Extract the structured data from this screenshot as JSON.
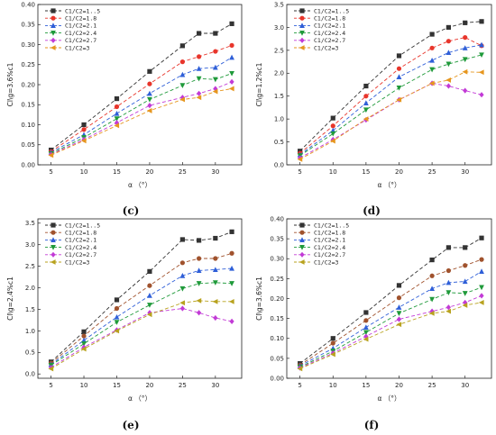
{
  "chart_data": [
    {
      "type": "line",
      "panel_label": "(c)",
      "ylabel": "Cl\\g=3.6%c1",
      "xlabel": "α （°）",
      "x": [
        5,
        10,
        15,
        20,
        25,
        27.5,
        30,
        32.5
      ],
      "xlim": [
        3,
        34
      ],
      "ylim": [
        0,
        0.4
      ],
      "yticks": [
        "0.00",
        "0.05",
        "0.10",
        "0.15",
        "0.20",
        "0.25",
        "0.30",
        "0.35",
        "0.40"
      ],
      "xticks": [
        "5",
        "10",
        "15",
        "20",
        "25",
        "30"
      ],
      "legend_placement": "top-left",
      "series": [
        {
          "name": "C1/C2=1..5",
          "color": "#333333",
          "marker": "square",
          "values": [
            0.037,
            0.1,
            0.165,
            0.233,
            0.297,
            0.328,
            0.328,
            0.352
          ]
        },
        {
          "name": "C1/C2=1.8",
          "color": "#e8352b",
          "marker": "circle",
          "values": [
            0.033,
            0.088,
            0.145,
            0.202,
            0.257,
            0.27,
            0.283,
            0.298
          ]
        },
        {
          "name": "C1/C2=2.1",
          "color": "#2f5fd8",
          "marker": "triangle-up",
          "values": [
            0.031,
            0.075,
            0.128,
            0.178,
            0.225,
            0.24,
            0.243,
            0.268
          ]
        },
        {
          "name": "C1/C2=2.4",
          "color": "#1f9a3a",
          "marker": "triangle-down",
          "values": [
            0.028,
            0.068,
            0.115,
            0.163,
            0.198,
            0.215,
            0.213,
            0.228
          ]
        },
        {
          "name": "C1/C2=2.7",
          "color": "#c23ad6",
          "marker": "diamond",
          "values": [
            0.026,
            0.063,
            0.105,
            0.148,
            0.168,
            0.178,
            0.19,
            0.207
          ]
        },
        {
          "name": "C1/C2=3",
          "color": "#e6961e",
          "marker": "triangle-left",
          "values": [
            0.024,
            0.06,
            0.098,
            0.135,
            0.163,
            0.168,
            0.183,
            0.19
          ]
        }
      ]
    },
    {
      "type": "line",
      "panel_label": "(d)",
      "ylabel": "Cl\\g=1.2%c1",
      "xlabel": "α （°）",
      "x": [
        5,
        10,
        15,
        20,
        25,
        27.5,
        30,
        32.5
      ],
      "xlim": [
        3,
        34
      ],
      "ylim": [
        0,
        3.5
      ],
      "yticks": [
        "0.0",
        "0.5",
        "1.0",
        "1.5",
        "2.0",
        "2.5",
        "3.0",
        "3.5"
      ],
      "xticks": [
        "5",
        "10",
        "15",
        "20",
        "25",
        "30"
      ],
      "legend_placement": "top-left",
      "series": [
        {
          "name": "C1/C2=1..5",
          "color": "#333333",
          "marker": "square",
          "values": [
            0.3,
            1.02,
            1.72,
            2.38,
            2.85,
            3.0,
            3.1,
            3.13
          ]
        },
        {
          "name": "C1/C2=1.8",
          "color": "#e8352b",
          "marker": "circle",
          "values": [
            0.25,
            0.85,
            1.5,
            2.1,
            2.55,
            2.7,
            2.78,
            2.6
          ]
        },
        {
          "name": "C1/C2=2.1",
          "color": "#2f5fd8",
          "marker": "triangle-up",
          "values": [
            0.22,
            0.75,
            1.35,
            1.92,
            2.28,
            2.45,
            2.55,
            2.62
          ]
        },
        {
          "name": "C1/C2=2.4",
          "color": "#1f9a3a",
          "marker": "triangle-down",
          "values": [
            0.2,
            0.68,
            1.2,
            1.68,
            2.08,
            2.2,
            2.3,
            2.4
          ]
        },
        {
          "name": "C1/C2=2.7",
          "color": "#c23ad6",
          "marker": "diamond",
          "values": [
            0.15,
            0.55,
            0.98,
            1.42,
            1.78,
            1.72,
            1.62,
            1.53
          ]
        },
        {
          "name": "C1/C2=3",
          "color": "#e6961e",
          "marker": "triangle-left",
          "values": [
            0.12,
            0.52,
            1.0,
            1.42,
            1.78,
            1.85,
            2.03,
            2.02
          ]
        }
      ]
    },
    {
      "type": "line",
      "panel_label": "(e)",
      "ylabel": "Cl\\g=2.4%c1",
      "xlabel": "α （°）",
      "x": [
        5,
        10,
        15,
        20,
        25,
        27.5,
        30,
        32.5
      ],
      "xlim": [
        3,
        34
      ],
      "ylim": [
        -0.1,
        3.6
      ],
      "yticks": [
        "0.0",
        "0.5",
        "1.0",
        "1.5",
        "2.0",
        "2.5",
        "3.0",
        "3.5"
      ],
      "xticks": [
        "5",
        "10",
        "15",
        "20",
        "25",
        "30"
      ],
      "legend_placement": "top-left",
      "series": [
        {
          "name": "C1/C2=1..5",
          "color": "#333333",
          "marker": "square",
          "values": [
            0.28,
            0.98,
            1.72,
            2.38,
            3.12,
            3.1,
            3.15,
            3.3
          ]
        },
        {
          "name": "C1/C2=1.8",
          "color": "#a0522d",
          "marker": "circle",
          "values": [
            0.25,
            0.88,
            1.52,
            2.05,
            2.58,
            2.68,
            2.68,
            2.8
          ]
        },
        {
          "name": "C1/C2=2.1",
          "color": "#2f5fd8",
          "marker": "triangle-up",
          "values": [
            0.22,
            0.78,
            1.32,
            1.82,
            2.28,
            2.4,
            2.42,
            2.45
          ]
        },
        {
          "name": "C1/C2=2.4",
          "color": "#1f9a3a",
          "marker": "triangle-down",
          "values": [
            0.2,
            0.7,
            1.2,
            1.6,
            1.98,
            2.1,
            2.12,
            2.1
          ]
        },
        {
          "name": "C1/C2=2.7",
          "color": "#c23ad6",
          "marker": "diamond",
          "values": [
            0.15,
            0.62,
            1.02,
            1.42,
            1.52,
            1.42,
            1.3,
            1.22
          ]
        },
        {
          "name": "C1/C2=3",
          "color": "#b8a21e",
          "marker": "triangle-left",
          "values": [
            0.12,
            0.58,
            1.0,
            1.38,
            1.65,
            1.7,
            1.68,
            1.68
          ]
        }
      ]
    },
    {
      "type": "line",
      "panel_label": "(f)",
      "ylabel": "Cl\\g=3.6%c1",
      "xlabel": "α （°）",
      "x": [
        5,
        10,
        15,
        20,
        25,
        27.5,
        30,
        32.5
      ],
      "xlim": [
        3,
        34
      ],
      "ylim": [
        0,
        0.4
      ],
      "yticks": [
        "0.00",
        "0.05",
        "0.10",
        "0.15",
        "0.20",
        "0.25",
        "0.30",
        "0.35",
        "0.40"
      ],
      "xticks": [
        "5",
        "10",
        "15",
        "20",
        "25",
        "30"
      ],
      "legend_placement": "top-left",
      "series": [
        {
          "name": "C1/C2=1..5",
          "color": "#333333",
          "marker": "square",
          "values": [
            0.037,
            0.1,
            0.165,
            0.233,
            0.297,
            0.328,
            0.328,
            0.352
          ]
        },
        {
          "name": "C1/C2=1.8",
          "color": "#a0522d",
          "marker": "circle",
          "values": [
            0.033,
            0.088,
            0.145,
            0.202,
            0.257,
            0.27,
            0.283,
            0.298
          ]
        },
        {
          "name": "C1/C2=2.1",
          "color": "#2f5fd8",
          "marker": "triangle-up",
          "values": [
            0.031,
            0.075,
            0.128,
            0.178,
            0.225,
            0.24,
            0.243,
            0.268
          ]
        },
        {
          "name": "C1/C2=2.4",
          "color": "#1f9a3a",
          "marker": "triangle-down",
          "values": [
            0.028,
            0.068,
            0.115,
            0.163,
            0.198,
            0.215,
            0.213,
            0.228
          ]
        },
        {
          "name": "C1/C2=2.7",
          "color": "#c23ad6",
          "marker": "diamond",
          "values": [
            0.026,
            0.063,
            0.105,
            0.148,
            0.168,
            0.178,
            0.19,
            0.207
          ]
        },
        {
          "name": "C1/C2=3",
          "color": "#b8a21e",
          "marker": "triangle-left",
          "values": [
            0.024,
            0.06,
            0.098,
            0.135,
            0.163,
            0.168,
            0.183,
            0.19
          ]
        }
      ]
    }
  ]
}
